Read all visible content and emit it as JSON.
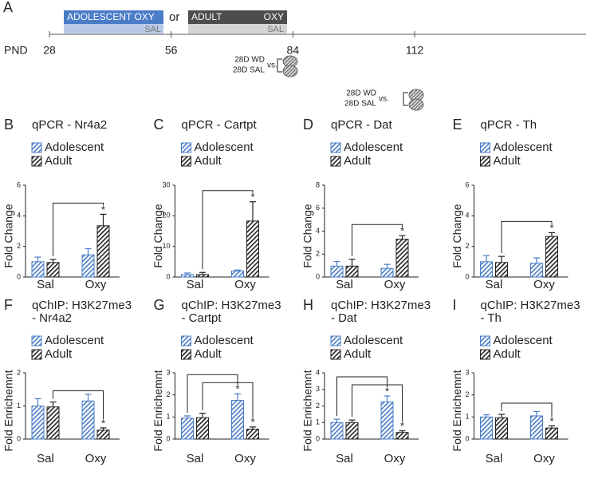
{
  "timeline": {
    "panel": "A",
    "adolescent": {
      "oxy": "ADOLESCENT OXY",
      "sal": "SAL"
    },
    "or": "or",
    "adult": {
      "oxy_left": "ADULT",
      "oxy_right": "OXY",
      "sal": "SAL"
    },
    "axis_label": "PND",
    "ticks": [
      28,
      56,
      84,
      112
    ],
    "comparisons": [
      {
        "wd": "28D WD",
        "sal": "28D SAL",
        "vs": "vs."
      },
      {
        "wd": "28D WD",
        "sal": "28D SAL",
        "vs": "vs."
      }
    ]
  },
  "chart_data": [
    {
      "type": "bar",
      "panel": "B",
      "title": [
        "qPCR - Nr4a2"
      ],
      "y_label": "Fold Change",
      "categories": [
        "Sal",
        "Oxy"
      ],
      "ylim": [
        0,
        6
      ],
      "yticks": [
        0,
        2,
        4,
        6
      ],
      "series": [
        {
          "name": "Adolescent",
          "color": "#4a7cc7",
          "values": [
            1.0,
            1.45
          ],
          "errors": [
            0.3,
            0.4
          ]
        },
        {
          "name": "Adult",
          "color": "#222222",
          "values": [
            0.95,
            3.35
          ],
          "errors": [
            0.2,
            0.75
          ]
        }
      ],
      "annotations": [
        {
          "text": "*",
          "series": "Adult",
          "category": "Oxy"
        }
      ]
    },
    {
      "type": "bar",
      "panel": "C",
      "title": [
        "qPCR - Cartpt"
      ],
      "y_label": "Fold Change",
      "categories": [
        "Sal",
        "Oxy"
      ],
      "ylim": [
        0,
        30
      ],
      "yticks": [
        0,
        10,
        20,
        30
      ],
      "series": [
        {
          "name": "Adolescent",
          "color": "#4a7cc7",
          "values": [
            0.8,
            2.0
          ],
          "errors": [
            0.5,
            0.3
          ]
        },
        {
          "name": "Adult",
          "color": "#222222",
          "values": [
            0.8,
            18.3
          ],
          "errors": [
            0.7,
            6.3
          ]
        }
      ],
      "annotations": [
        {
          "text": "*",
          "series": "Adult",
          "category": "Oxy"
        }
      ]
    },
    {
      "type": "bar",
      "panel": "D",
      "title": [
        "qPCR - Dat"
      ],
      "y_label": "Fold Change",
      "categories": [
        "Sal",
        "Oxy"
      ],
      "ylim": [
        0,
        8
      ],
      "yticks": [
        0,
        2,
        4,
        6,
        8
      ],
      "series": [
        {
          "name": "Adolescent",
          "color": "#4a7cc7",
          "values": [
            0.95,
            0.75
          ],
          "errors": [
            0.4,
            0.35
          ]
        },
        {
          "name": "Adult",
          "color": "#222222",
          "values": [
            0.95,
            3.3
          ],
          "errors": [
            0.6,
            0.3
          ]
        }
      ],
      "annotations": [
        {
          "text": "*",
          "series": "Adult",
          "category": "Oxy"
        }
      ]
    },
    {
      "type": "bar",
      "panel": "E",
      "title": [
        "qPCR - Th"
      ],
      "y_label": "Fold Change",
      "categories": [
        "Sal",
        "Oxy"
      ],
      "ylim": [
        0,
        6
      ],
      "yticks": [
        0,
        2,
        4,
        6
      ],
      "series": [
        {
          "name": "Adolescent",
          "color": "#4a7cc7",
          "values": [
            1.0,
            0.9
          ],
          "errors": [
            0.4,
            0.35
          ]
        },
        {
          "name": "Adult",
          "color": "#222222",
          "values": [
            0.95,
            2.65
          ],
          "errors": [
            0.4,
            0.25
          ]
        }
      ],
      "annotations": [
        {
          "text": "*",
          "series": "Adult",
          "category": "Oxy"
        }
      ]
    },
    {
      "type": "bar",
      "panel": "F",
      "title": [
        "qChIP: H3K27me3",
        "- Nr4a2"
      ],
      "y_label": "Fold Enrichemnt",
      "categories": [
        "Sal",
        "Oxy"
      ],
      "ylim": [
        0,
        2
      ],
      "yticks": [
        0,
        1,
        2
      ],
      "series": [
        {
          "name": "Adolescent",
          "color": "#4a7cc7",
          "values": [
            1.0,
            1.15
          ],
          "errors": [
            0.22,
            0.2
          ]
        },
        {
          "name": "Adult",
          "color": "#222222",
          "values": [
            0.97,
            0.27
          ],
          "errors": [
            0.15,
            0.07
          ]
        }
      ],
      "annotations": [
        {
          "text": "*",
          "series": "Adult",
          "category": "Oxy"
        }
      ]
    },
    {
      "type": "bar",
      "panel": "G",
      "title": [
        "qChIP: H3K27me3",
        "- Cartpt"
      ],
      "y_label": "Fold Enrichemnt",
      "categories": [
        "Sal",
        "Oxy"
      ],
      "ylim": [
        0,
        3
      ],
      "yticks": [
        0,
        1,
        2,
        3
      ],
      "series": [
        {
          "name": "Adolescent",
          "color": "#4a7cc7",
          "values": [
            0.95,
            1.75
          ],
          "errors": [
            0.1,
            0.3
          ]
        },
        {
          "name": "Adult",
          "color": "#222222",
          "values": [
            0.97,
            0.45
          ],
          "errors": [
            0.2,
            0.1
          ]
        }
      ],
      "annotations": [
        {
          "text": "*",
          "series": "Adolescent",
          "category": "Oxy"
        },
        {
          "text": "*",
          "series": "Adult",
          "category": "Oxy"
        }
      ]
    },
    {
      "type": "bar",
      "panel": "H",
      "title": [
        "qChIP: H3K27me3",
        "- Dat"
      ],
      "y_label": "Fold Enrichemnt",
      "categories": [
        "Sal",
        "Oxy"
      ],
      "ylim": [
        0,
        4
      ],
      "yticks": [
        0,
        1,
        2,
        3,
        4
      ],
      "series": [
        {
          "name": "Adolescent",
          "color": "#4a7cc7",
          "values": [
            1.0,
            2.25
          ],
          "errors": [
            0.2,
            0.35
          ]
        },
        {
          "name": "Adult",
          "color": "#222222",
          "values": [
            1.0,
            0.4
          ],
          "errors": [
            0.15,
            0.1
          ]
        }
      ],
      "annotations": [
        {
          "text": "*",
          "series": "Adolescent",
          "category": "Oxy"
        },
        {
          "text": "*",
          "series": "Adult",
          "category": "Oxy"
        }
      ]
    },
    {
      "type": "bar",
      "panel": "I",
      "title": [
        "qChIP: H3K27me3",
        "- Th"
      ],
      "y_label": "Fold Enrichemnt",
      "categories": [
        "Sal",
        "Oxy"
      ],
      "ylim": [
        0,
        3
      ],
      "yticks": [
        0,
        1,
        2,
        3
      ],
      "series": [
        {
          "name": "Adolescent",
          "color": "#4a7cc7",
          "values": [
            1.0,
            1.05
          ],
          "errors": [
            0.1,
            0.2
          ]
        },
        {
          "name": "Adult",
          "color": "#222222",
          "values": [
            0.97,
            0.5
          ],
          "errors": [
            0.15,
            0.1
          ]
        }
      ],
      "annotations": [
        {
          "text": "*",
          "series": "Adult",
          "category": "Oxy"
        }
      ]
    }
  ]
}
